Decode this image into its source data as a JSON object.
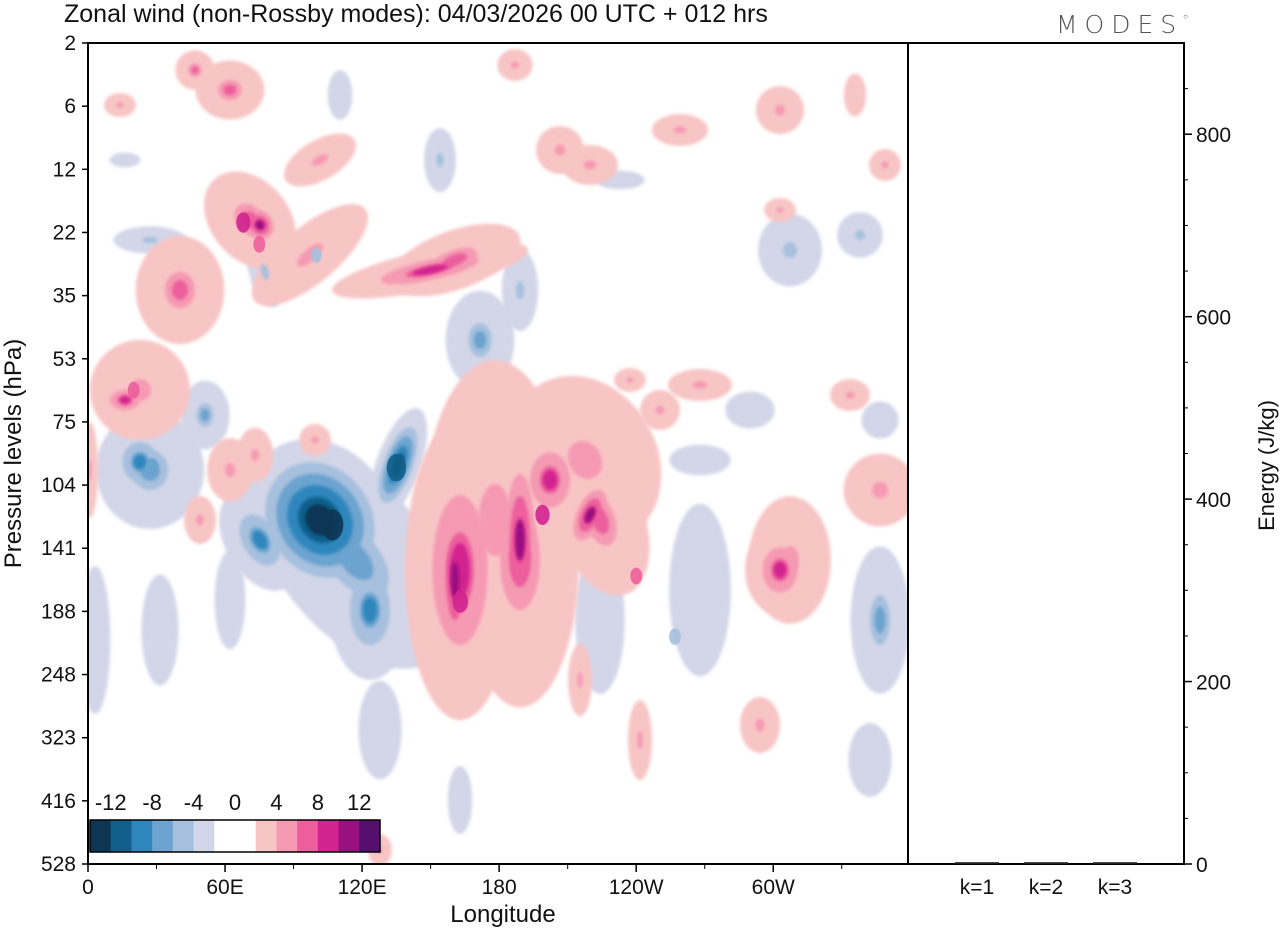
{
  "title": "Zonal wind (non-Rossby modes):  04/03/2026  00 UTC  + 012 hrs",
  "logo": "MODES",
  "colors": {
    "neg": [
      "#0d3654",
      "#115f8a",
      "#2e86bd",
      "#6ca3cf",
      "#a6c0de",
      "#d3d6e8"
    ],
    "pos": [
      "#f8c5c5",
      "#f59ab2",
      "#ec5f9c",
      "#d2248f",
      "#97117f",
      "#55106e"
    ],
    "frame": "#000000"
  },
  "chart_data": [
    {
      "type": "heatmap",
      "title": "Zonal wind (non-Rossby modes):  04/03/2026  00 UTC  + 012 hrs",
      "xlabel": "Longitude",
      "ylabel": "Pressure levels (hPa)",
      "x_ticks": [
        "0",
        "60E",
        "120E",
        "180",
        "120W",
        "60W"
      ],
      "y_ticks": [
        "2",
        "6",
        "12",
        "22",
        "35",
        "53",
        "75",
        "104",
        "141",
        "188",
        "248",
        "323",
        "416",
        "528"
      ],
      "colorbar": {
        "tick_labels": [
          "-12",
          "-8",
          "-4",
          "0",
          "4",
          "8",
          "12"
        ],
        "levels": [
          -14,
          -12,
          -10,
          -8,
          -6,
          -4,
          -2,
          2,
          4,
          6,
          8,
          10,
          12,
          14
        ]
      },
      "features": [
        {
          "lon": 107,
          "level": 126,
          "value": -14
        },
        {
          "lon": 135,
          "level": 95,
          "value": -12
        },
        {
          "lon": 28,
          "level": 95,
          "value": -7
        },
        {
          "lon": 257,
          "level": 210,
          "value": -6
        },
        {
          "lon": 100,
          "level": 26,
          "value": -5
        },
        {
          "lon": 163,
          "level": 180,
          "value": 9
        },
        {
          "lon": 199,
          "level": 120,
          "value": 8
        },
        {
          "lon": 68,
          "level": 20,
          "value": 8
        },
        {
          "lon": 75,
          "level": 24,
          "value": 6
        },
        {
          "lon": 20,
          "level": 63,
          "value": 6
        },
        {
          "lon": 240,
          "level": 160,
          "value": 6
        }
      ]
    },
    {
      "type": "bar",
      "categories": [
        "k=1",
        "k=2",
        "k=3"
      ],
      "values": [
        2,
        2,
        2
      ],
      "ylabel": "Energy (J/kg)",
      "ylim": [
        0,
        900
      ],
      "y_ticks": [
        "0",
        "200",
        "400",
        "600",
        "800"
      ]
    }
  ]
}
